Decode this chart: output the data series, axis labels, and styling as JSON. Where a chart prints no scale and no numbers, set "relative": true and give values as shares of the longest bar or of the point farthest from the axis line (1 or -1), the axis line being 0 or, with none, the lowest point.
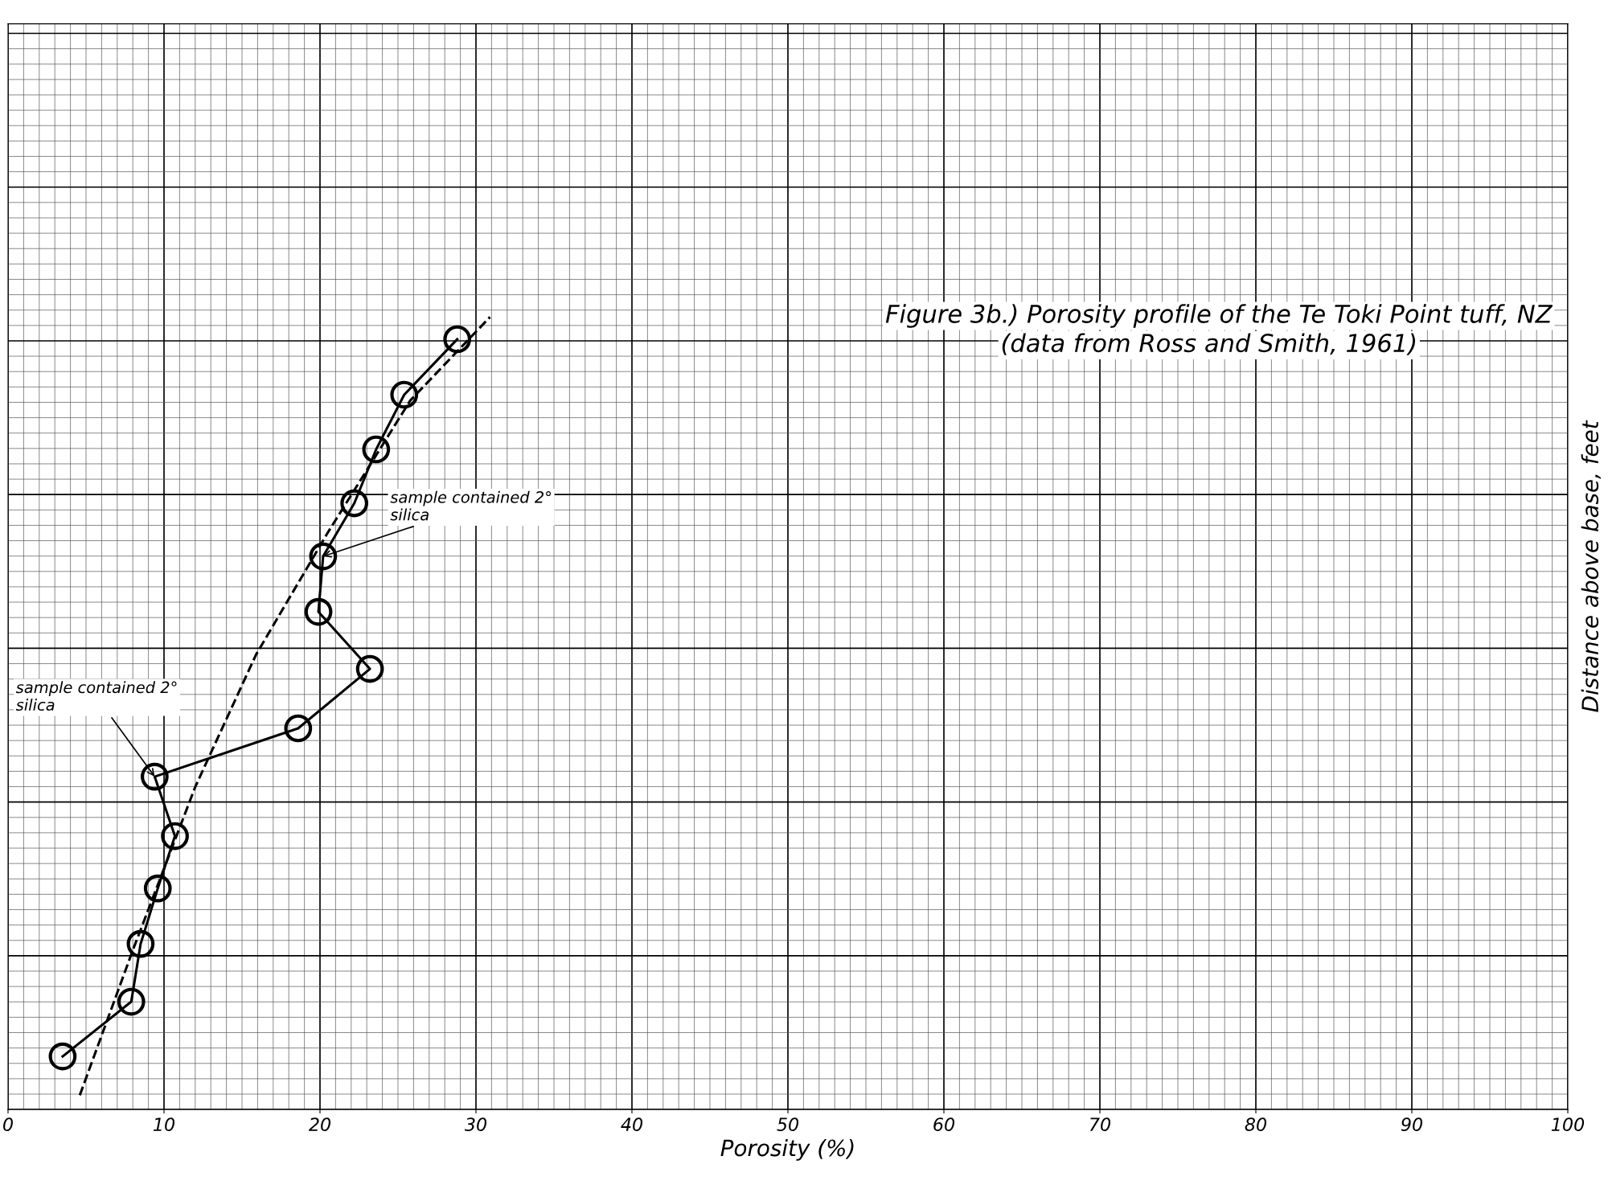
{
  "chart_data": {
    "type": "line",
    "title": "Figure 3b.) Porosity profile of the Te Toki Point tuff, NZ",
    "subtitle": "(data from Ross and Smith, 1961)",
    "xlabel": "Porosity (%)",
    "ylabel": "Distance above base, feet",
    "relative": true,
    "xlim": [
      0,
      100
    ],
    "xticks": [
      0,
      10,
      20,
      30,
      40,
      50,
      60,
      70,
      80,
      90,
      100
    ],
    "grid": true,
    "tick_labels": "x",
    "series": [
      {
        "color": "#000000",
        "marker": "circle",
        "line_style": "solid",
        "x": [
          3.5,
          7.9,
          8.5,
          9.6,
          10.7,
          9.4,
          18.6,
          23.2,
          19.9,
          20.2,
          22.2,
          23.6,
          25.4,
          28.8
        ],
        "values": [
          0.067,
          0.136,
          0.209,
          0.279,
          0.345,
          0.42,
          0.481,
          0.556,
          0.628,
          0.698,
          0.765,
          0.833,
          0.902,
          0.972
        ]
      },
      {
        "color": "#000000",
        "marker": "none",
        "line_style": "dashed",
        "x": [
          4.6,
          8.0,
          12.0,
          15.9,
          20.5,
          25.8,
          30.9
        ],
        "values": [
          0.018,
          0.201,
          0.407,
          0.574,
          0.728,
          0.895,
          1.0
        ]
      }
    ],
    "annotations": [
      {
        "text": "sample contained 2°\nsilica",
        "x": 20.2,
        "y": 0.698
      },
      {
        "text": "sample contained 2°\nsilica",
        "x": 9.4,
        "y": 0.42
      }
    ]
  }
}
